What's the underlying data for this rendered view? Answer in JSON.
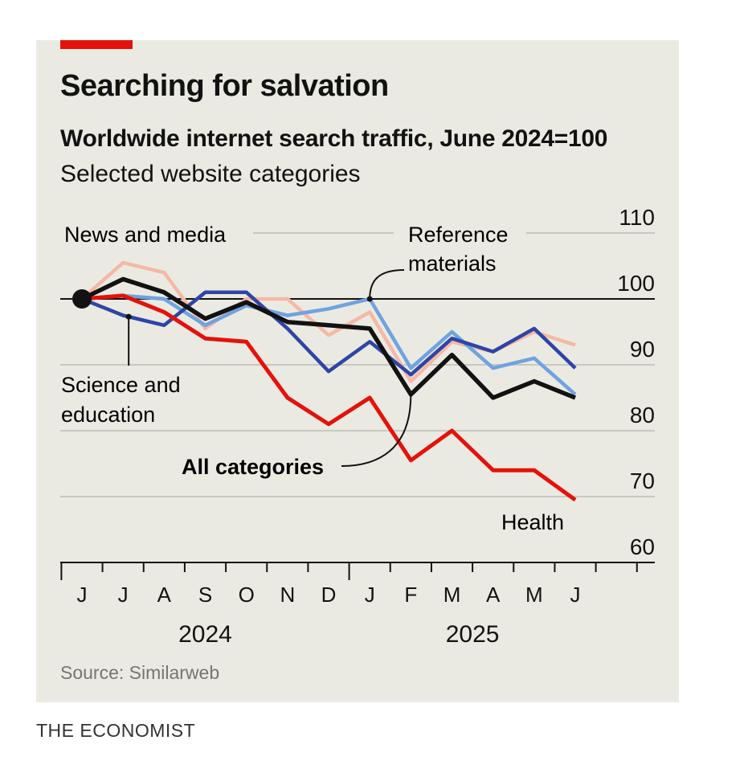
{
  "title": "Searching for salvation",
  "subtitle": "Worldwide internet search traffic, June 2024=100",
  "subsubtitle": "Selected website categories",
  "source": "Source: Similarweb",
  "brand": "THE ECONOMIST",
  "colors": {
    "panel": "#ebeae2",
    "accent": "#e3120b",
    "news": "#f6b8a6",
    "reference": "#6fa3e0",
    "science": "#2e45a6",
    "all": "#121212",
    "health": "#e3120b",
    "grid": "#c8c8c0"
  },
  "chart_data": {
    "type": "line",
    "x": [
      "J",
      "J",
      "A",
      "S",
      "O",
      "N",
      "D",
      "J",
      "F",
      "M",
      "A",
      "M",
      "J"
    ],
    "x_groups": [
      {
        "label": "2024",
        "from": 0,
        "to": 6
      },
      {
        "label": "2025",
        "from": 7,
        "to": 12
      }
    ],
    "ylim": [
      60,
      110
    ],
    "yticks": [
      110,
      100,
      90,
      80,
      70,
      60
    ],
    "baseline": 100,
    "series": [
      {
        "key": "news",
        "name": "News and media",
        "values": [
          100,
          105.5,
          104,
          95.5,
          100,
          100,
          94.5,
          98,
          87.5,
          93.5,
          92,
          95,
          93
        ]
      },
      {
        "key": "reference",
        "name": "Reference materials",
        "values": [
          100,
          100.5,
          100,
          96,
          99,
          97.5,
          98.5,
          100,
          89.5,
          95,
          89.5,
          91,
          85.5
        ]
      },
      {
        "key": "science",
        "name": "Science and education",
        "values": [
          100,
          97.5,
          96,
          101,
          101,
          95.5,
          89,
          93.5,
          88.5,
          94,
          92,
          95.5,
          89.5
        ]
      },
      {
        "key": "all",
        "name": "All categories",
        "values": [
          100,
          103,
          101,
          97,
          99.5,
          96.5,
          96,
          95.5,
          85.5,
          91.5,
          85,
          87.5,
          85
        ]
      },
      {
        "key": "health",
        "name": "Health",
        "values": [
          100,
          100.5,
          98,
          94,
          93.5,
          85,
          81,
          85,
          75.5,
          80,
          74,
          74,
          69.5
        ]
      }
    ],
    "labels": {
      "news": "News and media",
      "reference_line1": "Reference",
      "reference_line2": "materials",
      "science_line1": "Science and",
      "science_line2": "education",
      "all": "All categories",
      "health": "Health"
    }
  }
}
